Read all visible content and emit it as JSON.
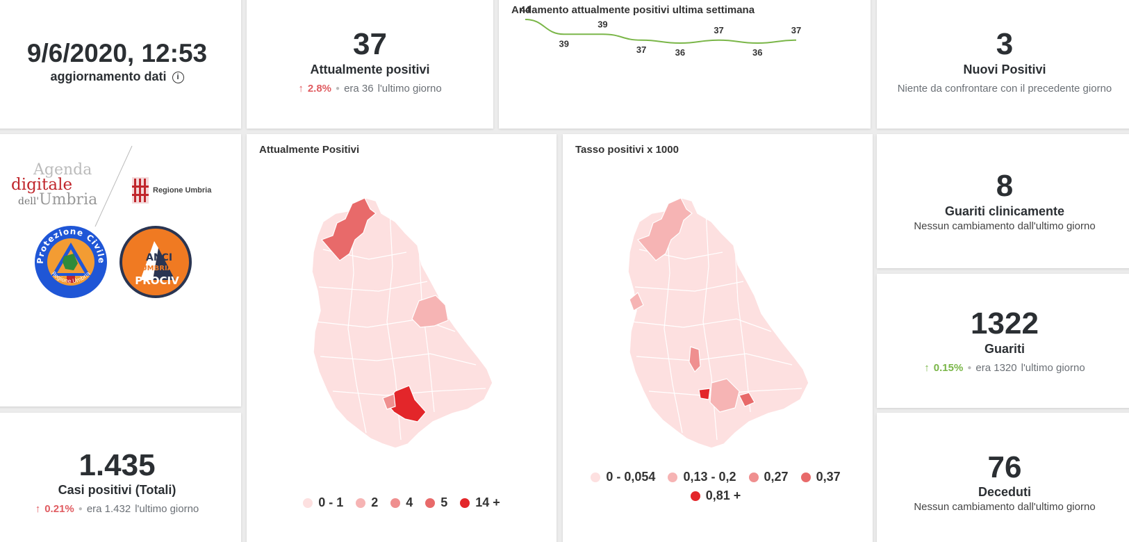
{
  "update": {
    "datetime": "9/6/2020, 12:53",
    "label": "aggiornamento dati",
    "info_icon": "i"
  },
  "attualmente": {
    "value": "37",
    "label": "Attualmente positivi",
    "pct": "2.8%",
    "prev": "era 36",
    "since": "l'ultimo giorno"
  },
  "trend": {
    "title": "Andamento attualmente positivi ultima settimana",
    "color": "#7ab648",
    "values": [
      44,
      39,
      39,
      37,
      36,
      37,
      36,
      37
    ]
  },
  "nuovi": {
    "value": "3",
    "label": "Nuovi Positivi",
    "note": "Niente da confrontare con il precedente giorno"
  },
  "logos": {
    "agenda_line1": "Agenda",
    "agenda_line2": "digitale",
    "agenda_line3a": "dell'",
    "agenda_line3b": "Umbria",
    "regione": "Regione Umbria",
    "protezione_ring": "Protezione Civile",
    "protezione_bottom": "Regione Umbria",
    "anci_top": "ANCI",
    "anci_mid": "UMBRIA",
    "anci_bottom": "PROCIV"
  },
  "map1": {
    "title": "Attualmente Positivi",
    "legend": [
      {
        "label": "0 - 1",
        "color": "#fde0e0"
      },
      {
        "label": "2",
        "color": "#f6b4b4"
      },
      {
        "label": "4",
        "color": "#ef8f8f"
      },
      {
        "label": "5",
        "color": "#e86a6a"
      },
      {
        "label": "14 +",
        "color": "#e3262a"
      }
    ]
  },
  "map2": {
    "title": "Tasso positivi x 1000",
    "legend": [
      {
        "label": "0 - 0,054",
        "color": "#fde0e0"
      },
      {
        "label": "0,13 - 0,2",
        "color": "#f6b4b4"
      },
      {
        "label": "0,27",
        "color": "#ef8f8f"
      },
      {
        "label": "0,37",
        "color": "#e86a6a"
      },
      {
        "label": "0,81 +",
        "color": "#e3262a"
      }
    ]
  },
  "guariti_clin": {
    "value": "8",
    "label": "Guariti clinicamente",
    "note": "Nessun cambiamento dall'ultimo giorno"
  },
  "guariti": {
    "value": "1322",
    "label": "Guariti",
    "pct": "0.15%",
    "prev": "era 1320",
    "since": "l'ultimo giorno"
  },
  "casi": {
    "value": "1.435",
    "label": "Casi positivi (Totali)",
    "pct": "0.21%",
    "prev": "era 1.432",
    "since": "l'ultimo giorno"
  },
  "deceduti": {
    "value": "76",
    "label": "Deceduti",
    "note": "Nessun cambiamento dall'ultimo giorno"
  },
  "colors": {
    "up_red": "#e05c61",
    "up_green": "#7ab648",
    "map_base": "#fde0e0"
  }
}
